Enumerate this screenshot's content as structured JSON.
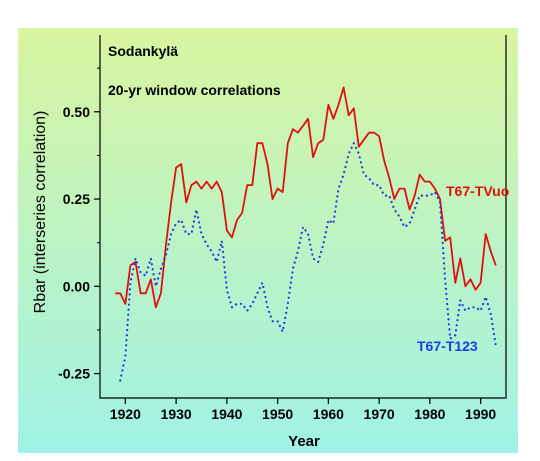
{
  "chart_data": {
    "type": "line",
    "title": "Sodankylä",
    "subtitle": "20-yr window correlations",
    "xlabel": "Year",
    "ylabel": "Rbar (interseries correlation)",
    "xlim": [
      1915,
      1995
    ],
    "ylim": [
      -0.32,
      0.72
    ],
    "xticks": [
      1920,
      1930,
      1940,
      1950,
      1960,
      1970,
      1980,
      1990
    ],
    "yticks": [
      -0.25,
      0.0,
      0.25,
      0.5
    ],
    "ytick_labels": [
      "-0.25",
      "0.00",
      "0.25",
      "0.50"
    ],
    "grid": false,
    "background": "vertical gradient green to cyan",
    "series": [
      {
        "name": "T67-TVuo",
        "color": "#e01010",
        "style": "solid",
        "x": [
          1918,
          1919,
          1920,
          1921,
          1922,
          1923,
          1924,
          1925,
          1926,
          1927,
          1928,
          1929,
          1930,
          1931,
          1932,
          1933,
          1934,
          1935,
          1936,
          1937,
          1938,
          1939,
          1940,
          1941,
          1942,
          1943,
          1944,
          1945,
          1946,
          1947,
          1948,
          1949,
          1950,
          1951,
          1952,
          1953,
          1954,
          1955,
          1956,
          1957,
          1958,
          1959,
          1960,
          1961,
          1962,
          1963,
          1964,
          1965,
          1966,
          1967,
          1968,
          1969,
          1970,
          1971,
          1972,
          1973,
          1974,
          1975,
          1976,
          1977,
          1978,
          1979,
          1980,
          1981,
          1982,
          1983,
          1984,
          1985,
          1986,
          1987,
          1988,
          1989,
          1990,
          1991,
          1992,
          1993
        ],
        "y": [
          -0.02,
          -0.02,
          -0.05,
          0.06,
          0.07,
          -0.02,
          -0.02,
          0.02,
          -0.06,
          -0.02,
          0.12,
          0.24,
          0.34,
          0.35,
          0.24,
          0.29,
          0.3,
          0.28,
          0.3,
          0.28,
          0.3,
          0.27,
          0.16,
          0.14,
          0.19,
          0.21,
          0.29,
          0.29,
          0.41,
          0.41,
          0.35,
          0.25,
          0.28,
          0.27,
          0.41,
          0.45,
          0.44,
          0.46,
          0.48,
          0.37,
          0.41,
          0.42,
          0.52,
          0.48,
          0.52,
          0.57,
          0.49,
          0.51,
          0.4,
          0.42,
          0.44,
          0.44,
          0.43,
          0.36,
          0.31,
          0.25,
          0.28,
          0.28,
          0.22,
          0.26,
          0.32,
          0.3,
          0.3,
          0.28,
          0.25,
          0.13,
          0.14,
          0.01,
          0.08,
          0.0,
          0.02,
          -0.01,
          0.01,
          0.15,
          0.1,
          0.06
        ]
      },
      {
        "name": "T67-T123",
        "color": "#1a3fe0",
        "style": "dotted",
        "x": [
          1919,
          1920,
          1921,
          1922,
          1923,
          1924,
          1925,
          1926,
          1927,
          1928,
          1929,
          1930,
          1931,
          1932,
          1933,
          1934,
          1935,
          1936,
          1937,
          1938,
          1939,
          1940,
          1941,
          1942,
          1943,
          1944,
          1945,
          1946,
          1947,
          1948,
          1949,
          1950,
          1951,
          1952,
          1953,
          1954,
          1955,
          1956,
          1957,
          1958,
          1959,
          1960,
          1961,
          1962,
          1963,
          1964,
          1965,
          1966,
          1967,
          1968,
          1969,
          1970,
          1971,
          1972,
          1973,
          1974,
          1975,
          1976,
          1977,
          1978,
          1979,
          1980,
          1981,
          1982,
          1983,
          1984,
          1985,
          1986,
          1987,
          1988,
          1989,
          1990,
          1991,
          1992,
          1993
        ],
        "y": [
          -0.27,
          -0.2,
          0.01,
          0.08,
          0.04,
          0.03,
          0.08,
          0.0,
          0.05,
          0.09,
          0.15,
          0.18,
          0.19,
          0.15,
          0.15,
          0.22,
          0.15,
          0.12,
          0.1,
          0.07,
          0.13,
          -0.01,
          -0.06,
          -0.05,
          -0.05,
          -0.07,
          -0.05,
          -0.02,
          0.01,
          -0.06,
          -0.1,
          -0.1,
          -0.13,
          -0.05,
          0.05,
          0.1,
          0.17,
          0.15,
          0.08,
          0.07,
          0.12,
          0.19,
          0.18,
          0.28,
          0.32,
          0.38,
          0.41,
          0.38,
          0.32,
          0.31,
          0.29,
          0.29,
          0.26,
          0.26,
          0.22,
          0.2,
          0.17,
          0.18,
          0.22,
          0.26,
          0.26,
          0.26,
          0.27,
          0.24,
          0.02,
          -0.15,
          -0.14,
          -0.04,
          -0.07,
          -0.06,
          -0.06,
          -0.07,
          -0.03,
          -0.08,
          -0.17
        ]
      }
    ]
  }
}
